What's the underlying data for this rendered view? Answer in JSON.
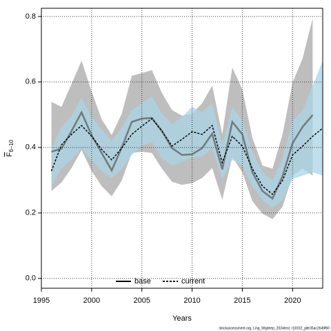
{
  "chart_data": {
    "type": "line",
    "x_label": "Years",
    "y_label": {
      "symbol": "F",
      "subscript": "6−10"
    },
    "footnote": "stockassessment.org, Ling_Wgdeep_2024test, r18102_gite35ac2b49f60",
    "x": [
      1996,
      1997,
      1998,
      1999,
      2000,
      2001,
      2002,
      2003,
      2004,
      2005,
      2006,
      2007,
      2008,
      2009,
      2010,
      2011,
      2012,
      2013,
      2014,
      2015,
      2016,
      2017,
      2018,
      2019,
      2020,
      2021,
      2022,
      2023
    ],
    "xlim": [
      1995,
      2023
    ],
    "xticks": [
      1995,
      2000,
      2005,
      2010,
      2015,
      2020
    ],
    "ylim": [
      -0.03,
      0.825
    ],
    "yticks": [
      {
        "value": 0,
        "label": "0.0"
      },
      0.2,
      0.4,
      0.6,
      0.8
    ],
    "grid": true,
    "legend": "bottom",
    "series": [
      {
        "name": "base",
        "color": "#555555",
        "band_color": "#bebebe",
        "line_style": "solid",
        "values": [
          0.387,
          0.396,
          0.45,
          0.507,
          0.437,
          0.383,
          0.33,
          0.4,
          0.478,
          0.488,
          0.49,
          0.45,
          0.398,
          0.377,
          0.379,
          0.398,
          0.442,
          0.333,
          0.478,
          0.44,
          0.324,
          0.267,
          0.244,
          0.312,
          0.413,
          0.463,
          0.499,
          null
        ],
        "upper": [
          0.539,
          0.524,
          0.594,
          0.665,
          0.571,
          0.486,
          0.438,
          0.503,
          0.619,
          0.627,
          0.636,
          0.566,
          0.514,
          0.497,
          0.503,
          0.535,
          0.589,
          0.44,
          0.644,
          0.577,
          0.429,
          0.345,
          0.335,
          0.44,
          0.598,
          0.672,
          0.794,
          null
        ],
        "lower": [
          0.267,
          0.293,
          0.337,
          0.392,
          0.328,
          0.282,
          0.251,
          0.299,
          0.383,
          0.387,
          0.383,
          0.335,
          0.295,
          0.286,
          0.291,
          0.307,
          0.337,
          0.24,
          0.371,
          0.324,
          0.236,
          0.198,
          0.181,
          0.219,
          0.314,
          0.335,
          0.314,
          null
        ]
      },
      {
        "name": "current",
        "color": "#000000",
        "band_color": "#a9d4e6",
        "line_style": "dashed",
        "values": [
          0.328,
          0.408,
          0.44,
          0.467,
          0.434,
          0.394,
          0.362,
          0.398,
          0.44,
          0.465,
          0.488,
          0.45,
          0.404,
          0.425,
          0.448,
          0.44,
          0.467,
          0.354,
          0.434,
          0.404,
          0.335,
          0.282,
          0.257,
          0.299,
          0.377,
          0.404,
          0.434,
          0.459
        ],
        "upper": [
          0.398,
          0.461,
          0.497,
          0.552,
          0.493,
          0.455,
          0.419,
          0.461,
          0.514,
          0.535,
          0.556,
          0.503,
          0.472,
          0.493,
          0.524,
          0.507,
          0.535,
          0.408,
          0.524,
          0.482,
          0.387,
          0.324,
          0.299,
          0.366,
          0.482,
          0.514,
          0.588,
          0.665
        ],
        "lower": [
          0.282,
          0.335,
          0.362,
          0.398,
          0.362,
          0.328,
          0.307,
          0.335,
          0.377,
          0.404,
          0.417,
          0.366,
          0.345,
          0.356,
          0.371,
          0.371,
          0.398,
          0.303,
          0.362,
          0.345,
          0.282,
          0.24,
          0.215,
          0.24,
          0.303,
          0.314,
          0.324,
          0.314
        ]
      }
    ]
  }
}
